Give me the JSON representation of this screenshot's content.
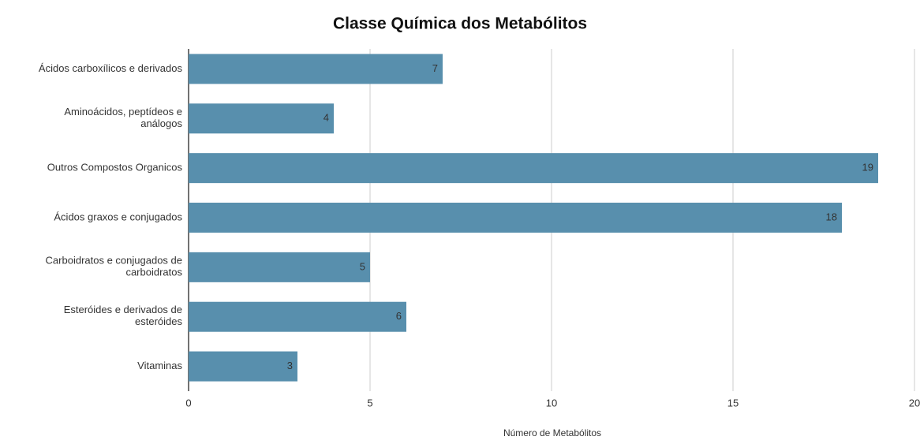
{
  "chart_data": {
    "type": "barh",
    "title": "Classe Química dos Metabólitos",
    "x_label": "Número de Metabólitos",
    "categories": [
      "Ácidos carboxílicos e derivados",
      "Aminoácidos, peptídeos e análogos",
      "Outros Compostos Organicos",
      "Ácidos graxos e conjugados",
      "Carboidratos e conjugados de carboidratos",
      "Esteróides e derivados de esteróides",
      "Vitaminas"
    ],
    "values": [
      7,
      4,
      19,
      18,
      5,
      6,
      3
    ],
    "color": "#588fad",
    "xlim": [
      0,
      20
    ],
    "xticks": [
      0,
      5,
      10,
      15,
      20
    ],
    "grid": true
  }
}
